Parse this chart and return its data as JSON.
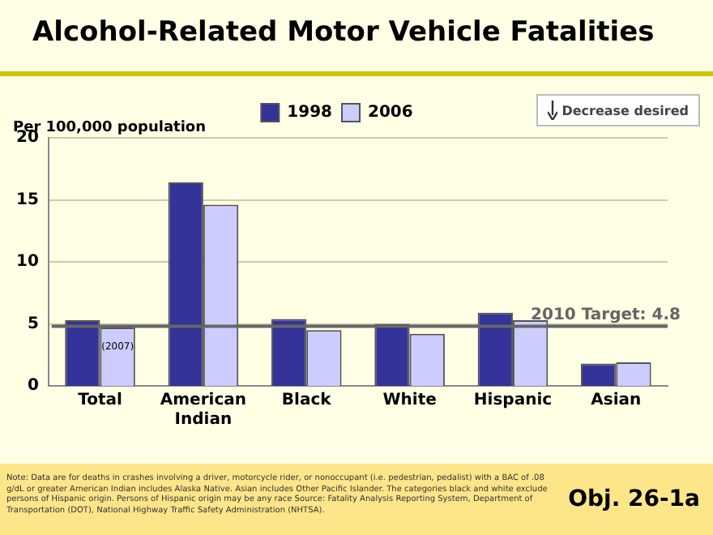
{
  "chart_data": {
    "type": "bar",
    "title": "Alcohol-Related Motor Vehicle Fatalities",
    "ylabel": "Per 100,000 population",
    "categories": [
      "Total",
      "American Indian",
      "Black",
      "White",
      "Hispanic",
      "Asian"
    ],
    "series": [
      {
        "name": "1998",
        "color": "#333399",
        "values": [
          5.3,
          16.4,
          5.4,
          5.0,
          5.9,
          1.8
        ]
      },
      {
        "name": "2006",
        "color": "#ccccff",
        "values": [
          4.7,
          14.6,
          4.5,
          4.2,
          5.3,
          1.9
        ]
      }
    ],
    "ylim": [
      0,
      20
    ],
    "yticks": [
      0,
      5,
      10,
      15,
      20
    ],
    "grid": "y",
    "legend": "top",
    "ref_lines": [
      {
        "axis": "y",
        "value": 4.8,
        "label": "2010 Target: 4.8",
        "color": "#666666"
      }
    ],
    "annotations": [
      {
        "text": "(2007)",
        "x": "Total",
        "y": 4.7
      },
      "Decrease desired",
      "Note: Data are for deaths in crashes involving a driver, motorcycle rider, or nonoccupant (i.e. pedestrian, pedalist) with a BAC of .08 g/dL or greater American Indian includes Alaska Native. Asian includes Other Pacific Islander. The categories black and white exclude persons of Hispanic origin. Persons of Hispanic origin may be any race Source: Fatality Analysis Reporting System, Department of Transportation (DOT), National Highway Traffic Safety Administration (NHTSA).",
      "Obj. 26-1a"
    ]
  }
}
